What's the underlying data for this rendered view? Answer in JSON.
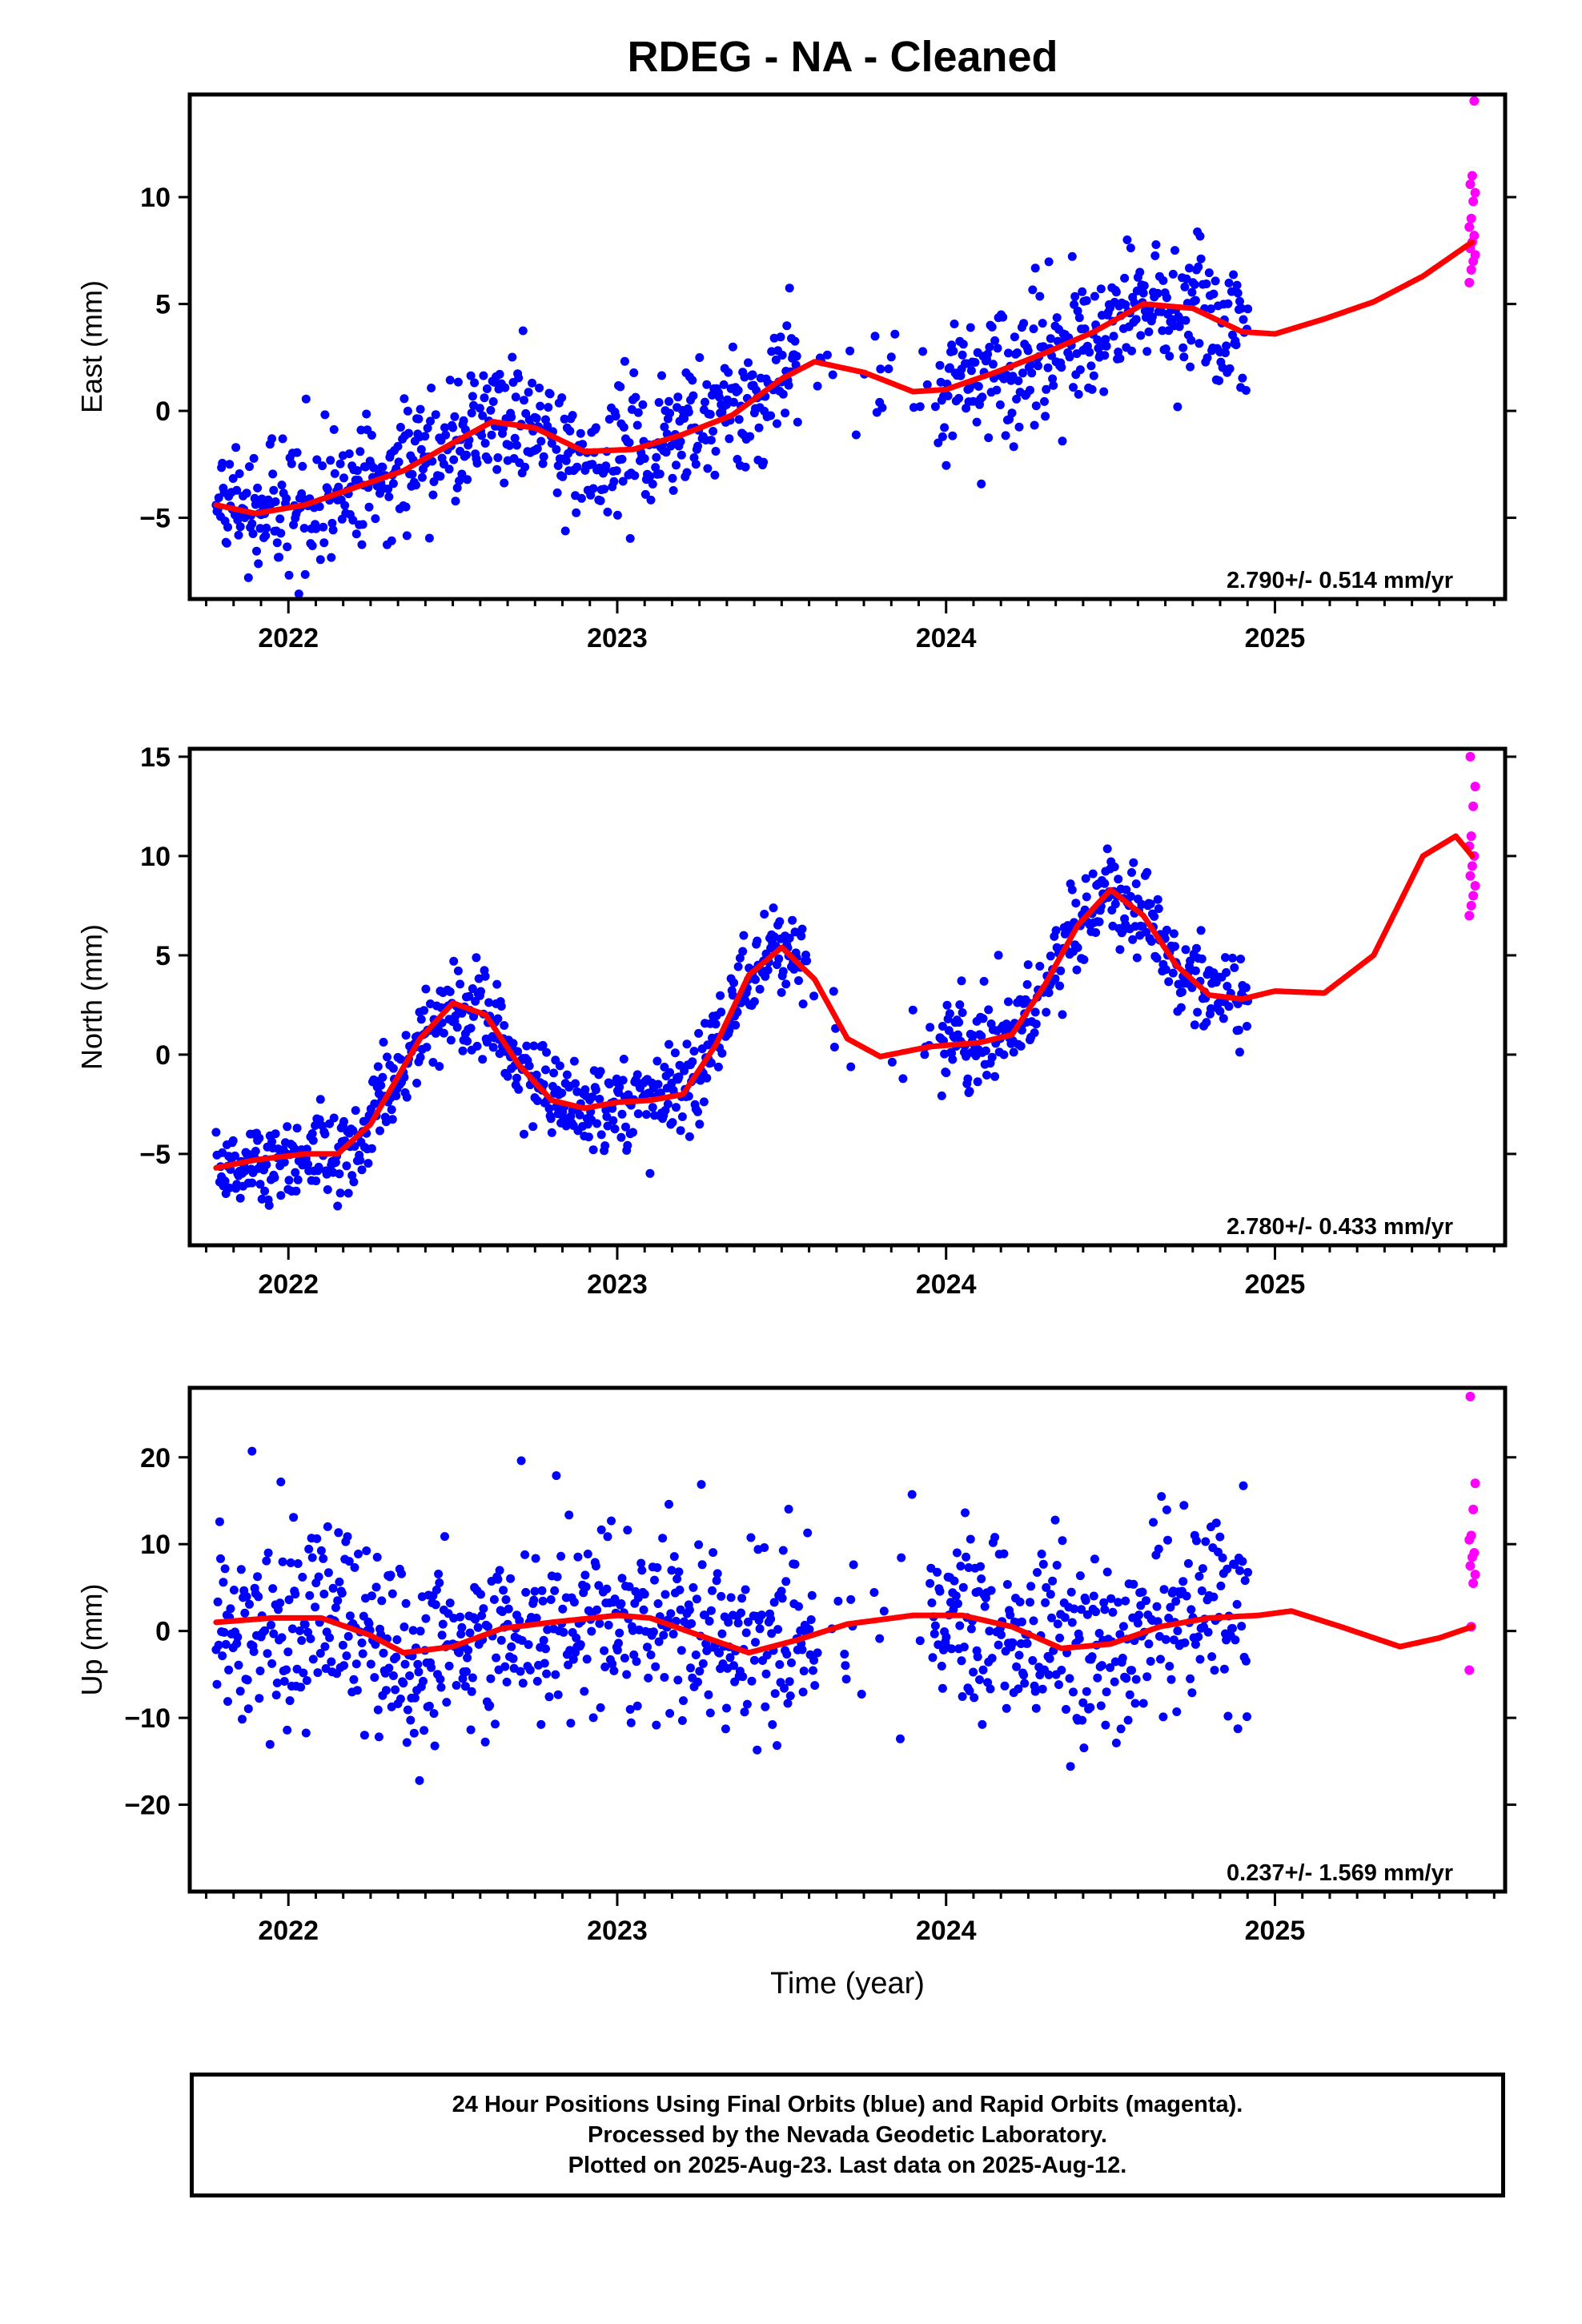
{
  "title": "RDEG  - NA - Cleaned",
  "footer": {
    "line1": "24 Hour Positions Using Final Orbits (blue) and Rapid Orbits (magenta).",
    "line2": "Processed by the Nevada Geodetic Laboratory.",
    "line3": "Plotted on 2025-Aug-23. Last data on 2025-Aug-12."
  },
  "colors": {
    "final": "#0000ff",
    "rapid": "#ff00ff",
    "fit": "#ff0000",
    "axis": "#000000"
  },
  "chart_data": [
    {
      "type": "scatter",
      "name": "east",
      "ylabel": "East (mm)",
      "xlabel": "",
      "rate_text": "2.790+/- 0.514 mm/yr",
      "xlim": [
        2021.7,
        2025.7
      ],
      "ylim": [
        -8.8,
        14.8
      ],
      "xticks": [
        2022,
        2023,
        2024,
        2025
      ],
      "yticks": [
        -5,
        0,
        5,
        10
      ],
      "trend": {
        "slope": 2.79,
        "value_at_2023": -0.9
      },
      "seasonal": [
        {
          "amp": 1.3,
          "period": 1.0,
          "phase": 0.6
        }
      ],
      "noise_sd": 1.5,
      "final_span": [
        2021.78,
        2024.92
      ],
      "gap": [
        2023.55,
        2023.98
      ],
      "rapid_x": 2025.6,
      "rapid_y": [
        6.0,
        6.6,
        7.0,
        7.3,
        7.6,
        7.9,
        8.2,
        8.6,
        9.0,
        9.8,
        10.2,
        10.6,
        11.0,
        14.5
      ],
      "fit": [
        [
          2021.78,
          -4.4
        ],
        [
          2021.9,
          -4.8
        ],
        [
          2022.05,
          -4.4
        ],
        [
          2022.2,
          -3.6
        ],
        [
          2022.35,
          -2.8
        ],
        [
          2022.5,
          -1.5
        ],
        [
          2022.62,
          -0.5
        ],
        [
          2022.75,
          -0.8
        ],
        [
          2022.9,
          -1.9
        ],
        [
          2023.05,
          -1.8
        ],
        [
          2023.2,
          -1.1
        ],
        [
          2023.35,
          -0.2
        ],
        [
          2023.5,
          1.5
        ],
        [
          2023.6,
          2.3
        ],
        [
          2023.75,
          1.8
        ],
        [
          2023.9,
          0.9
        ],
        [
          2024.0,
          1.0
        ],
        [
          2024.15,
          1.8
        ],
        [
          2024.3,
          2.7
        ],
        [
          2024.45,
          3.7
        ],
        [
          2024.6,
          5.0
        ],
        [
          2024.75,
          4.8
        ],
        [
          2024.9,
          3.7
        ],
        [
          2025.0,
          3.6
        ],
        [
          2025.15,
          4.3
        ],
        [
          2025.3,
          5.1
        ],
        [
          2025.45,
          6.3
        ],
        [
          2025.6,
          7.9
        ]
      ]
    },
    {
      "type": "scatter",
      "name": "north",
      "ylabel": "North (mm)",
      "xlabel": "",
      "rate_text": "2.780+/- 0.433 mm/yr",
      "xlim": [
        2021.7,
        2025.7
      ],
      "ylim": [
        -9.6,
        15.4
      ],
      "xticks": [
        2022,
        2023,
        2024,
        2025
      ],
      "yticks": [
        -5,
        0,
        5,
        10,
        15
      ],
      "trend": {
        "slope": 2.78,
        "value_at_2023": -1.0
      },
      "seasonal": [
        {
          "amp": 3.3,
          "period": 1.0,
          "phase": 0.3
        }
      ],
      "noise_sd": 1.1,
      "final_span": [
        2021.78,
        2024.92
      ],
      "gap": [
        2023.58,
        2023.98
      ],
      "rapid_x": 2025.6,
      "rapid_y": [
        7.0,
        7.5,
        8.0,
        8.5,
        9.0,
        9.5,
        10.0,
        10.5,
        11.0,
        12.5,
        13.5,
        15.0
      ],
      "fit": [
        [
          2021.78,
          -5.7
        ],
        [
          2021.9,
          -5.3
        ],
        [
          2022.05,
          -5.0
        ],
        [
          2022.15,
          -5.0
        ],
        [
          2022.25,
          -3.5
        ],
        [
          2022.4,
          0.8
        ],
        [
          2022.5,
          2.6
        ],
        [
          2022.6,
          2.0
        ],
        [
          2022.7,
          -0.5
        ],
        [
          2022.8,
          -2.3
        ],
        [
          2022.9,
          -2.7
        ],
        [
          2023.0,
          -2.4
        ],
        [
          2023.1,
          -2.3
        ],
        [
          2023.2,
          -2.0
        ],
        [
          2023.3,
          0.5
        ],
        [
          2023.4,
          4.0
        ],
        [
          2023.5,
          5.4
        ],
        [
          2023.6,
          3.8
        ],
        [
          2023.7,
          0.8
        ],
        [
          2023.8,
          -0.1
        ],
        [
          2023.95,
          0.4
        ],
        [
          2024.1,
          0.6
        ],
        [
          2024.2,
          1.0
        ],
        [
          2024.3,
          3.5
        ],
        [
          2024.4,
          6.5
        ],
        [
          2024.5,
          8.3
        ],
        [
          2024.6,
          7.0
        ],
        [
          2024.7,
          4.5
        ],
        [
          2024.8,
          3.0
        ],
        [
          2024.9,
          2.8
        ],
        [
          2025.0,
          3.2
        ],
        [
          2025.15,
          3.1
        ],
        [
          2025.3,
          5.0
        ],
        [
          2025.45,
          10.0
        ],
        [
          2025.55,
          11.0
        ],
        [
          2025.6,
          10.0
        ]
      ]
    },
    {
      "type": "scatter",
      "name": "up",
      "ylabel": "Up (mm)",
      "xlabel": "Time (year)",
      "rate_text": "0.237+/- 1.569 mm/yr",
      "xlim": [
        2021.7,
        2025.7
      ],
      "ylim": [
        -30,
        28
      ],
      "xticks": [
        2022,
        2023,
        2024,
        2025
      ],
      "yticks": [
        -20,
        -10,
        0,
        10,
        20
      ],
      "trend": {
        "slope": 0.237,
        "value_at_2023": 0.0
      },
      "seasonal": [
        {
          "amp": 2.0,
          "period": 1.0,
          "phase": 0.7
        }
      ],
      "noise_sd": 5.5,
      "final_span": [
        2021.78,
        2024.92
      ],
      "gap": [
        2023.6,
        2023.95
      ],
      "rapid_x": 2025.6,
      "rapid_y": [
        -4.5,
        0.5,
        5.5,
        6.5,
        7.5,
        8.5,
        9.0,
        10.5,
        11.0,
        14.0,
        17.0,
        27.0
      ],
      "fit": [
        [
          2021.78,
          1.0
        ],
        [
          2021.95,
          1.5
        ],
        [
          2022.1,
          1.5
        ],
        [
          2022.25,
          -0.5
        ],
        [
          2022.35,
          -2.5
        ],
        [
          2022.5,
          -1.8
        ],
        [
          2022.65,
          0.3
        ],
        [
          2022.8,
          1.0
        ],
        [
          2023.0,
          1.8
        ],
        [
          2023.1,
          1.5
        ],
        [
          2023.25,
          -0.5
        ],
        [
          2023.4,
          -2.5
        ],
        [
          2023.55,
          -1.0
        ],
        [
          2023.7,
          0.8
        ],
        [
          2023.9,
          1.8
        ],
        [
          2024.05,
          1.8
        ],
        [
          2024.2,
          0.5
        ],
        [
          2024.35,
          -2.0
        ],
        [
          2024.5,
          -1.5
        ],
        [
          2024.65,
          0.5
        ],
        [
          2024.8,
          1.5
        ],
        [
          2024.95,
          1.8
        ],
        [
          2025.05,
          2.3
        ],
        [
          2025.2,
          0.5
        ],
        [
          2025.38,
          -1.8
        ],
        [
          2025.5,
          -0.8
        ],
        [
          2025.6,
          0.5
        ]
      ]
    }
  ]
}
